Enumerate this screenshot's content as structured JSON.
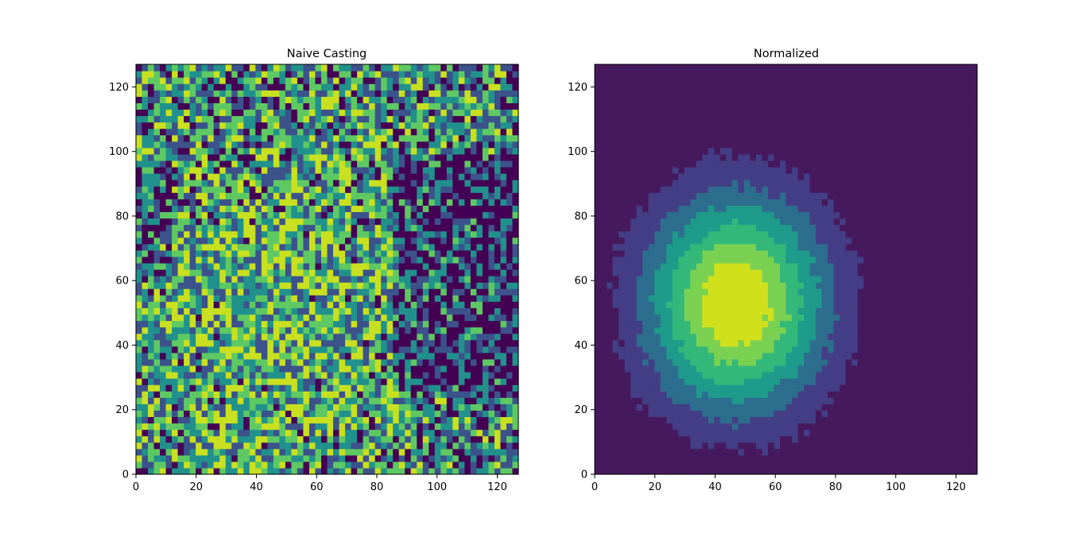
{
  "chart_data": [
    {
      "type": "heatmap",
      "subtype": "filled-contour",
      "title": "Naive Casting",
      "xlim": [
        0,
        127
      ],
      "ylim": [
        0,
        127
      ],
      "xticks": [
        0,
        20,
        40,
        60,
        80,
        100,
        120
      ],
      "yticks": [
        0,
        20,
        40,
        60,
        80,
        100,
        120
      ],
      "colormap": "viridis",
      "levels": 5,
      "pattern": "noisy",
      "colors": [
        "#440154",
        "#3b528b",
        "#21918c",
        "#5ec962",
        "#c8e020"
      ]
    },
    {
      "type": "heatmap",
      "subtype": "filled-contour",
      "title": "Normalized",
      "xlim": [
        0,
        127
      ],
      "ylim": [
        0,
        127
      ],
      "xticks": [
        0,
        20,
        40,
        60,
        80,
        100,
        120
      ],
      "yticks": [
        0,
        20,
        40,
        60,
        80,
        100,
        120
      ],
      "colormap": "viridis",
      "levels": 7,
      "pattern": "blob",
      "peak_center": [
        47,
        53
      ],
      "colors": [
        "#46195f",
        "#433e85",
        "#2d6d8e",
        "#1e9b8a",
        "#33b87a",
        "#7ad151",
        "#d0e11c"
      ]
    }
  ]
}
